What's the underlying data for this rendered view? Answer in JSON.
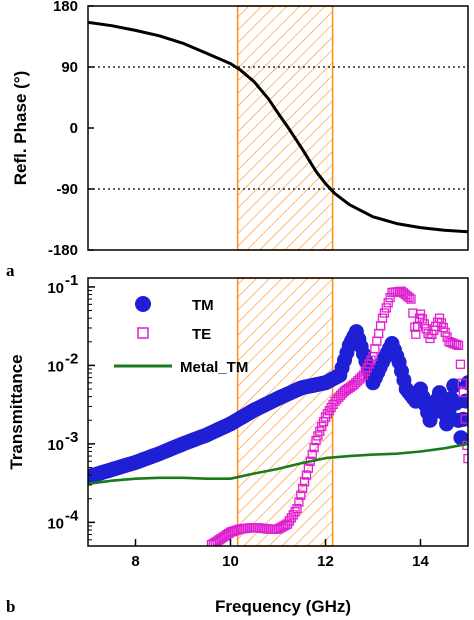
{
  "chart_data": [
    {
      "panel": "a",
      "type": "line",
      "title": "",
      "ylabel": "Refl. Phase (°)",
      "xlabel": "",
      "xlim": [
        7,
        15
      ],
      "ylim": [
        -180,
        180
      ],
      "yticks": [
        180,
        90,
        0,
        -90,
        -180
      ],
      "reference_lines": [
        90,
        -90
      ],
      "band": [
        10.15,
        12.15
      ],
      "series": [
        {
          "color": "#000000",
          "x": [
            7,
            7.5,
            8,
            8.5,
            9,
            9.5,
            10,
            10.2,
            10.5,
            10.8,
            11,
            11.2,
            11.5,
            11.8,
            12,
            12.2,
            12.5,
            13,
            13.5,
            14,
            14.5,
            15
          ],
          "y": [
            156,
            151,
            144,
            136,
            125,
            110,
            95,
            86,
            68,
            43,
            22,
            2,
            -30,
            -64,
            -82,
            -97,
            -113,
            -131,
            -141,
            -147,
            -151,
            -153
          ]
        }
      ]
    },
    {
      "panel": "b",
      "type": "scatter",
      "title": "",
      "xlabel": "Frequency (GHz)",
      "ylabel": "Transmittance",
      "xlim": [
        7,
        15
      ],
      "xticks": [
        8,
        10,
        12,
        14
      ],
      "ylim": [
        5e-05,
        0.13
      ],
      "yscale": "log",
      "yticks": [
        0.1,
        0.01,
        0.001,
        0.0001
      ],
      "ytick_labels": [
        {
          "base": "10",
          "exp": "-1"
        },
        {
          "base": "10",
          "exp": "-2"
        },
        {
          "base": "10",
          "exp": "-3"
        },
        {
          "base": "10",
          "exp": "-4"
        }
      ],
      "band": [
        10.15,
        12.15
      ],
      "legend_position": "upper-left",
      "series": [
        {
          "name": "TM",
          "marker": "filled-circle",
          "color": "#1f1fd6",
          "x": [
            7,
            7.5,
            8,
            8.5,
            9,
            9.5,
            10,
            10.5,
            11,
            11.5,
            12,
            12.3,
            12.5,
            12.65,
            12.8,
            13,
            13.2,
            13.4,
            13.55,
            13.7,
            13.9,
            14,
            14.2,
            14.4,
            14.55,
            14.7,
            14.85,
            15
          ],
          "y": [
            0.00038,
            0.00047,
            0.00058,
            0.00075,
            0.001,
            0.0013,
            0.0018,
            0.0027,
            0.0038,
            0.0052,
            0.006,
            0.0075,
            0.018,
            0.027,
            0.014,
            0.006,
            0.011,
            0.019,
            0.011,
            0.005,
            0.0035,
            0.005,
            0.002,
            0.0045,
            0.0018,
            0.0055,
            0.0012,
            0.006
          ]
        },
        {
          "name": "TE",
          "marker": "open-square",
          "color": "#e020d0",
          "x": [
            9.6,
            9.8,
            10,
            10.2,
            10.4,
            10.6,
            10.8,
            11,
            11.2,
            11.4,
            11.6,
            11.8,
            12,
            12.2,
            12.4,
            12.6,
            12.8,
            13,
            13.2,
            13.4,
            13.6,
            13.8,
            13.9,
            14,
            14.2,
            14.4,
            14.6,
            14.8,
            14.9,
            15
          ],
          "y": [
            5.2e-05,
            6.2e-05,
            7.5e-05,
            8.2e-05,
            8.5e-05,
            8.5e-05,
            8.2e-05,
            8.2e-05,
            9.5e-05,
            0.00015,
            0.0004,
            0.0011,
            0.0022,
            0.0035,
            0.0047,
            0.0057,
            0.0075,
            0.013,
            0.04,
            0.085,
            0.088,
            0.07,
            0.025,
            0.045,
            0.022,
            0.04,
            0.02,
            0.018,
            0.0045,
            0.00065
          ]
        },
        {
          "name": "Metal_TM",
          "marker": "line",
          "color": "#1b7a1b",
          "x": [
            7,
            7.5,
            8,
            8.5,
            9,
            9.5,
            10,
            10.5,
            11,
            11.5,
            12,
            12.5,
            13,
            13.5,
            14,
            14.5,
            15
          ],
          "y": [
            0.00031,
            0.00034,
            0.00036,
            0.00037,
            0.00037,
            0.00036,
            0.00036,
            0.00042,
            0.00048,
            0.00057,
            0.00066,
            0.0007,
            0.00073,
            0.00075,
            0.0008,
            0.00088,
            0.001
          ]
        }
      ]
    }
  ]
}
